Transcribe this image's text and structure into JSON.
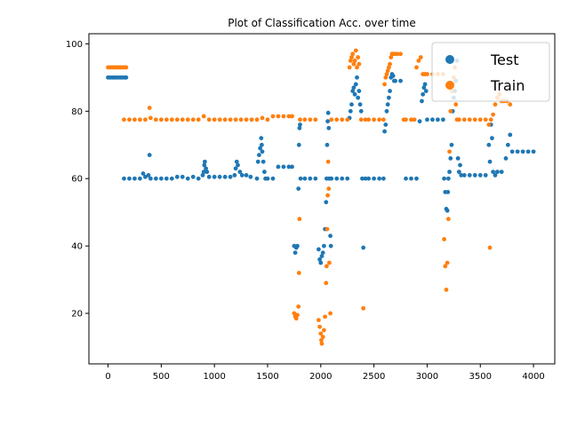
{
  "chart_data": {
    "type": "scatter",
    "title": "Plot of Classification Acc. over time",
    "xlabel": "",
    "ylabel": "",
    "xlim": [
      -180,
      4200
    ],
    "ylim": [
      5,
      103
    ],
    "xticks": [
      0,
      500,
      1000,
      1500,
      2000,
      2500,
      3000,
      3500,
      4000
    ],
    "yticks": [
      20,
      40,
      60,
      80,
      100
    ],
    "grid": false,
    "legend_position": "top-right",
    "series": [
      {
        "name": "Test",
        "color": "#1f77b4",
        "points": [
          [
            0,
            90
          ],
          [
            20,
            90
          ],
          [
            40,
            90
          ],
          [
            60,
            90
          ],
          [
            80,
            90
          ],
          [
            100,
            90
          ],
          [
            120,
            90
          ],
          [
            140,
            90
          ],
          [
            160,
            90
          ],
          [
            170,
            90
          ],
          [
            150,
            60
          ],
          [
            200,
            60
          ],
          [
            250,
            60
          ],
          [
            300,
            60
          ],
          [
            330,
            61.5
          ],
          [
            350,
            60.5
          ],
          [
            380,
            61
          ],
          [
            390,
            67
          ],
          [
            400,
            60
          ],
          [
            450,
            60
          ],
          [
            500,
            60
          ],
          [
            550,
            60
          ],
          [
            600,
            60
          ],
          [
            650,
            60.5
          ],
          [
            700,
            60.5
          ],
          [
            750,
            60
          ],
          [
            800,
            60.5
          ],
          [
            850,
            60
          ],
          [
            890,
            61
          ],
          [
            900,
            62
          ],
          [
            905,
            64
          ],
          [
            910,
            65
          ],
          [
            920,
            63
          ],
          [
            930,
            62
          ],
          [
            950,
            60.5
          ],
          [
            1000,
            60.5
          ],
          [
            1050,
            60.5
          ],
          [
            1100,
            60.5
          ],
          [
            1150,
            60.5
          ],
          [
            1190,
            61
          ],
          [
            1200,
            63
          ],
          [
            1210,
            65
          ],
          [
            1220,
            64
          ],
          [
            1240,
            62
          ],
          [
            1260,
            61
          ],
          [
            1300,
            61
          ],
          [
            1340,
            60.5
          ],
          [
            1400,
            60
          ],
          [
            1410,
            65
          ],
          [
            1420,
            67
          ],
          [
            1430,
            69
          ],
          [
            1440,
            72
          ],
          [
            1445,
            70
          ],
          [
            1450,
            68
          ],
          [
            1460,
            65
          ],
          [
            1470,
            62
          ],
          [
            1480,
            60
          ],
          [
            1500,
            60
          ],
          [
            1550,
            60
          ],
          [
            1600,
            63.5
          ],
          [
            1650,
            63.5
          ],
          [
            1700,
            63.5
          ],
          [
            1730,
            63.5
          ],
          [
            1750,
            40
          ],
          [
            1760,
            38
          ],
          [
            1770,
            39.5
          ],
          [
            1780,
            40
          ],
          [
            1790,
            57
          ],
          [
            1795,
            70
          ],
          [
            1800,
            75
          ],
          [
            1805,
            76
          ],
          [
            1810,
            60
          ],
          [
            1850,
            60
          ],
          [
            1900,
            60
          ],
          [
            1950,
            60
          ],
          [
            1980,
            39
          ],
          [
            1990,
            36
          ],
          [
            2000,
            35
          ],
          [
            2010,
            37
          ],
          [
            2020,
            38
          ],
          [
            2030,
            40
          ],
          [
            2040,
            45
          ],
          [
            2050,
            53
          ],
          [
            2055,
            60
          ],
          [
            2060,
            70
          ],
          [
            2065,
            77
          ],
          [
            2070,
            79.5
          ],
          [
            2075,
            75
          ],
          [
            2080,
            60
          ],
          [
            2090,
            43
          ],
          [
            2095,
            40
          ],
          [
            2100,
            60
          ],
          [
            2150,
            60
          ],
          [
            2200,
            60
          ],
          [
            2250,
            60
          ],
          [
            2270,
            78
          ],
          [
            2280,
            80
          ],
          [
            2290,
            82
          ],
          [
            2300,
            86
          ],
          [
            2310,
            87
          ],
          [
            2320,
            85
          ],
          [
            2330,
            88
          ],
          [
            2340,
            90
          ],
          [
            2350,
            84
          ],
          [
            2360,
            86
          ],
          [
            2370,
            82
          ],
          [
            2380,
            80
          ],
          [
            2390,
            60
          ],
          [
            2400,
            39.5
          ],
          [
            2420,
            60
          ],
          [
            2450,
            60
          ],
          [
            2500,
            60
          ],
          [
            2550,
            60
          ],
          [
            2590,
            60
          ],
          [
            2600,
            74
          ],
          [
            2610,
            76
          ],
          [
            2620,
            80
          ],
          [
            2630,
            82
          ],
          [
            2640,
            84
          ],
          [
            2650,
            86
          ],
          [
            2660,
            90
          ],
          [
            2670,
            91
          ],
          [
            2680,
            90.5
          ],
          [
            2690,
            89
          ],
          [
            2700,
            89
          ],
          [
            2750,
            89
          ],
          [
            2800,
            60
          ],
          [
            2850,
            60
          ],
          [
            2900,
            60
          ],
          [
            2930,
            77
          ],
          [
            2950,
            83
          ],
          [
            2960,
            85
          ],
          [
            2970,
            87
          ],
          [
            2980,
            88
          ],
          [
            2990,
            86
          ],
          [
            3000,
            77.5
          ],
          [
            3050,
            77.5
          ],
          [
            3100,
            77.5
          ],
          [
            3150,
            77.5
          ],
          [
            3160,
            60
          ],
          [
            3170,
            56
          ],
          [
            3180,
            51
          ],
          [
            3190,
            50.5
          ],
          [
            3195,
            56
          ],
          [
            3200,
            60
          ],
          [
            3210,
            62
          ],
          [
            3220,
            66
          ],
          [
            3230,
            70
          ],
          [
            3240,
            80
          ],
          [
            3250,
            84
          ],
          [
            3260,
            86
          ],
          [
            3270,
            89
          ],
          [
            3280,
            95
          ],
          [
            3290,
            66
          ],
          [
            3300,
            62
          ],
          [
            3310,
            64
          ],
          [
            3320,
            61
          ],
          [
            3350,
            61
          ],
          [
            3400,
            61
          ],
          [
            3450,
            61
          ],
          [
            3500,
            61
          ],
          [
            3550,
            61
          ],
          [
            3580,
            70
          ],
          [
            3590,
            65
          ],
          [
            3600,
            76
          ],
          [
            3610,
            72
          ],
          [
            3620,
            62
          ],
          [
            3640,
            61
          ],
          [
            3660,
            62
          ],
          [
            3700,
            62
          ],
          [
            3740,
            66
          ],
          [
            3760,
            70
          ],
          [
            3780,
            73
          ],
          [
            3800,
            68
          ],
          [
            3850,
            68
          ],
          [
            3900,
            68
          ],
          [
            3950,
            68
          ],
          [
            4000,
            68
          ]
        ]
      },
      {
        "name": "Train",
        "color": "#ff7f0e",
        "points": [
          [
            0,
            93
          ],
          [
            20,
            93
          ],
          [
            40,
            93
          ],
          [
            60,
            93
          ],
          [
            80,
            93
          ],
          [
            100,
            93
          ],
          [
            120,
            93
          ],
          [
            140,
            93
          ],
          [
            160,
            93
          ],
          [
            170,
            93
          ],
          [
            150,
            77.5
          ],
          [
            200,
            77.5
          ],
          [
            250,
            77.5
          ],
          [
            300,
            77.5
          ],
          [
            350,
            77.5
          ],
          [
            390,
            81
          ],
          [
            400,
            78
          ],
          [
            450,
            77.5
          ],
          [
            500,
            77.5
          ],
          [
            550,
            77.5
          ],
          [
            600,
            77.5
          ],
          [
            650,
            77.5
          ],
          [
            700,
            77.5
          ],
          [
            750,
            77.5
          ],
          [
            800,
            77.5
          ],
          [
            850,
            77.5
          ],
          [
            900,
            78.5
          ],
          [
            950,
            77.5
          ],
          [
            1000,
            77.5
          ],
          [
            1050,
            77.5
          ],
          [
            1100,
            77.5
          ],
          [
            1150,
            77.5
          ],
          [
            1200,
            77.5
          ],
          [
            1250,
            77.5
          ],
          [
            1300,
            77.5
          ],
          [
            1350,
            77.5
          ],
          [
            1400,
            77.5
          ],
          [
            1450,
            78
          ],
          [
            1500,
            77.5
          ],
          [
            1550,
            78.5
          ],
          [
            1600,
            78.5
          ],
          [
            1650,
            78.5
          ],
          [
            1700,
            78.5
          ],
          [
            1730,
            78.5
          ],
          [
            1750,
            20
          ],
          [
            1760,
            19
          ],
          [
            1770,
            18.5
          ],
          [
            1780,
            19.5
          ],
          [
            1790,
            22
          ],
          [
            1795,
            32
          ],
          [
            1800,
            48
          ],
          [
            1805,
            77.5
          ],
          [
            1850,
            77.5
          ],
          [
            1900,
            77.5
          ],
          [
            1950,
            77.5
          ],
          [
            1980,
            18
          ],
          [
            1990,
            16
          ],
          [
            2000,
            14
          ],
          [
            2005,
            12
          ],
          [
            2010,
            11
          ],
          [
            2020,
            13
          ],
          [
            2030,
            15
          ],
          [
            2040,
            19
          ],
          [
            2050,
            29
          ],
          [
            2055,
            34
          ],
          [
            2060,
            45
          ],
          [
            2065,
            55
          ],
          [
            2070,
            65
          ],
          [
            2075,
            57
          ],
          [
            2080,
            35
          ],
          [
            2090,
            20
          ],
          [
            2100,
            77.5
          ],
          [
            2150,
            77.5
          ],
          [
            2200,
            77.5
          ],
          [
            2250,
            77.5
          ],
          [
            2270,
            93
          ],
          [
            2280,
            95
          ],
          [
            2290,
            96
          ],
          [
            2300,
            97
          ],
          [
            2310,
            94
          ],
          [
            2320,
            95
          ],
          [
            2330,
            98
          ],
          [
            2340,
            93
          ],
          [
            2350,
            96
          ],
          [
            2360,
            94
          ],
          [
            2380,
            77.5
          ],
          [
            2400,
            21.5
          ],
          [
            2420,
            77.5
          ],
          [
            2450,
            77.5
          ],
          [
            2500,
            77.5
          ],
          [
            2550,
            77.5
          ],
          [
            2590,
            77.5
          ],
          [
            2600,
            88
          ],
          [
            2610,
            90
          ],
          [
            2620,
            91
          ],
          [
            2630,
            92
          ],
          [
            2640,
            93
          ],
          [
            2650,
            94
          ],
          [
            2660,
            96
          ],
          [
            2670,
            97
          ],
          [
            2680,
            97
          ],
          [
            2700,
            97
          ],
          [
            2720,
            97
          ],
          [
            2750,
            97
          ],
          [
            2780,
            77.5
          ],
          [
            2800,
            77.5
          ],
          [
            2850,
            77.5
          ],
          [
            2880,
            77.5
          ],
          [
            2900,
            93
          ],
          [
            2920,
            95
          ],
          [
            2940,
            96
          ],
          [
            2960,
            91
          ],
          [
            2980,
            91
          ],
          [
            3000,
            91
          ],
          [
            3050,
            91
          ],
          [
            3100,
            91
          ],
          [
            3150,
            91
          ],
          [
            3160,
            42
          ],
          [
            3170,
            34
          ],
          [
            3180,
            27
          ],
          [
            3190,
            35
          ],
          [
            3200,
            48
          ],
          [
            3210,
            68
          ],
          [
            3220,
            80
          ],
          [
            3230,
            86
          ],
          [
            3240,
            88
          ],
          [
            3250,
            90
          ],
          [
            3260,
            93
          ],
          [
            3270,
            82
          ],
          [
            3280,
            77.5
          ],
          [
            3300,
            77.5
          ],
          [
            3350,
            77.5
          ],
          [
            3400,
            77.5
          ],
          [
            3450,
            77.5
          ],
          [
            3500,
            77.5
          ],
          [
            3550,
            77.5
          ],
          [
            3580,
            76
          ],
          [
            3590,
            39.5
          ],
          [
            3600,
            77.5
          ],
          [
            3620,
            79
          ],
          [
            3640,
            82
          ],
          [
            3660,
            84
          ],
          [
            3680,
            85
          ],
          [
            3700,
            83
          ],
          [
            3720,
            83
          ],
          [
            3750,
            83
          ],
          [
            3780,
            82
          ]
        ]
      }
    ]
  }
}
